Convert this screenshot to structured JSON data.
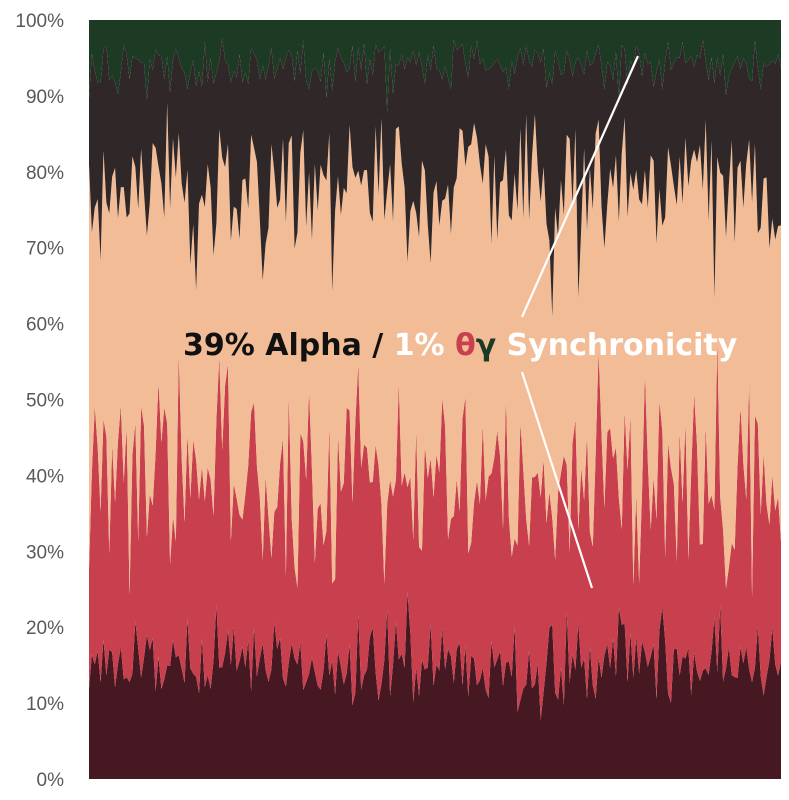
{
  "chart_data": {
    "type": "area",
    "stacked": true,
    "normalized_percent": true,
    "title": "",
    "xlabel": "",
    "ylabel": "",
    "ylim": [
      0,
      100
    ],
    "y_ticks": [
      "0%",
      "10%",
      "20%",
      "30%",
      "40%",
      "50%",
      "60%",
      "70%",
      "80%",
      "90%",
      "100%"
    ],
    "grid": false,
    "legend": "none",
    "n_samples": 240,
    "series": [
      {
        "color": "#461922",
        "mean": 15,
        "range": [
          11,
          20
        ]
      },
      {
        "color": "#c8404e",
        "mean": 24,
        "range": [
          10,
          45
        ]
      },
      {
        "color": "#f2bc96",
        "mean": 39,
        "range": [
          20,
          55
        ]
      },
      {
        "color": "#302828",
        "mean": 16,
        "range": [
          8,
          28
        ]
      },
      {
        "color": "#1d3a24",
        "mean": 6,
        "range": [
          3,
          10
        ]
      }
    ],
    "annotation": {
      "parts": [
        {
          "text": "39% Alpha / ",
          "color": "#111111"
        },
        {
          "text": "1% ",
          "color": "#ffffff"
        },
        {
          "text": "θ",
          "color": "#c8404e"
        },
        {
          "text": "γ",
          "color": "#1d3a24"
        },
        {
          "text": " Synchronicity",
          "color": "#ffffff"
        }
      ],
      "line_color": "#ffffff"
    }
  }
}
